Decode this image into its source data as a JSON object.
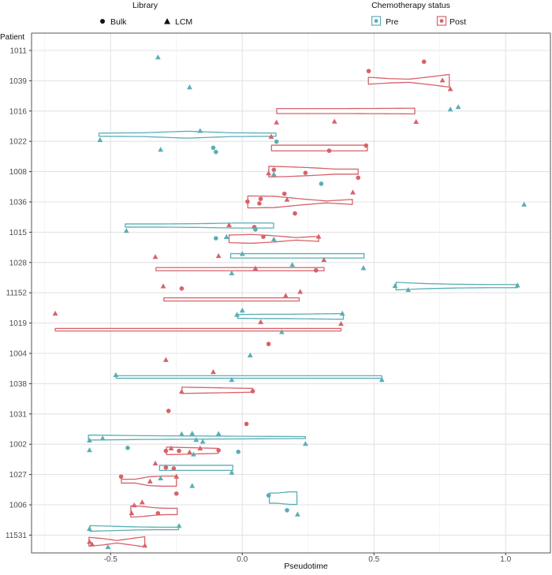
{
  "chart_data": {
    "type": "violin",
    "xlabel": "Pseudotime",
    "ylabel": "Patient",
    "xlim": [
      -0.8,
      1.17
    ],
    "x_ticks": [
      -0.5,
      0,
      0.5,
      1.0
    ],
    "x_tick_labels": [
      "-0.5",
      "0.0",
      "0.5",
      "1.0"
    ],
    "x_minor_ticks": [
      -0.75,
      -0.25,
      0.25,
      0.75
    ],
    "grid": true,
    "legend_position": "top",
    "categories": [
      "1011",
      "1039",
      "1016",
      "1022",
      "1008",
      "1036",
      "1015",
      "1028",
      "11152",
      "1019",
      "1004",
      "1038",
      "1031",
      "1002",
      "1027",
      "1006",
      "11531"
    ],
    "legends": [
      {
        "title": "Library",
        "entries": [
          {
            "label": "Bulk",
            "shape": "circle"
          },
          {
            "label": "LCM",
            "shape": "triangle"
          }
        ]
      },
      {
        "title": "Chemotherapy status",
        "entries": [
          {
            "label": "Pre",
            "color": "#5AAEB4"
          },
          {
            "label": "Post",
            "color": "#D6636A"
          }
        ]
      }
    ],
    "colors": {
      "Pre": "#5AAEB4",
      "Post": "#D6636A"
    },
    "violins": [
      {
        "patient": "1039",
        "status": "Post",
        "min": 0.479,
        "max": 0.786,
        "density": [
          0.55,
          0.35,
          0.25,
          0.6,
          1.0
        ]
      },
      {
        "patient": "1016",
        "status": "Post",
        "min": 0.131,
        "max": 0.655,
        "density": [
          0.4,
          0.4,
          0.4,
          0.42,
          0.45
        ]
      },
      {
        "patient": "1022",
        "status": "Pre",
        "min": -0.544,
        "max": 0.128,
        "density": [
          0.25,
          0.3,
          0.55,
          0.3,
          0.25
        ]
      },
      {
        "patient": "1022",
        "status": "Post",
        "min": 0.111,
        "max": 0.475,
        "density": [
          0.45,
          0.45,
          0.45,
          0.45,
          0.45
        ]
      },
      {
        "patient": "1008",
        "status": "Post",
        "min": 0.101,
        "max": 0.44,
        "density": [
          0.85,
          0.75,
          0.6,
          0.4,
          0.4
        ]
      },
      {
        "patient": "1036",
        "status": "Post",
        "min": 0.021,
        "max": 0.418,
        "density": [
          0.95,
          0.9,
          0.5,
          0.15,
          0.4
        ]
      },
      {
        "patient": "1015",
        "status": "Pre",
        "min": -0.444,
        "max": 0.119,
        "density": [
          0.25,
          0.25,
          0.3,
          0.4,
          0.4
        ]
      },
      {
        "patient": "1015",
        "status": "Post",
        "min": -0.05,
        "max": 0.29,
        "density": [
          0.6,
          0.7,
          0.5,
          0.2,
          0.4
        ]
      },
      {
        "patient": "1028",
        "status": "Pre",
        "min": -0.044,
        "max": 0.4625,
        "density": [
          0.35,
          0.35,
          0.35,
          0.35,
          0.35
        ]
      },
      {
        "patient": "1028",
        "status": "Post",
        "min": -0.3275,
        "max": 0.311,
        "density": [
          0.25,
          0.25,
          0.25,
          0.25,
          0.25
        ]
      },
      {
        "patient": "11152",
        "status": "Pre",
        "min": 0.584,
        "max": 1.045,
        "density": [
          0.6,
          0.4,
          0.3,
          0.25,
          0.25
        ]
      },
      {
        "patient": "11152",
        "status": "Post",
        "min": -0.2975,
        "max": 0.216,
        "density": [
          0.25,
          0.25,
          0.25,
          0.25,
          0.25
        ]
      },
      {
        "patient": "1019",
        "status": "Pre",
        "min": -0.0175,
        "max": 0.384,
        "density": [
          0.3,
          0.35,
          0.35,
          0.4,
          0.45
        ]
      },
      {
        "patient": "1019",
        "status": "Post",
        "min": -0.71,
        "max": 0.375,
        "density": [
          0.2,
          0.2,
          0.2,
          0.2,
          0.2
        ]
      },
      {
        "patient": "1038",
        "status": "Pre",
        "min": -0.479,
        "max": 0.53,
        "density": [
          0.2,
          0.2,
          0.2,
          0.2,
          0.2
        ]
      },
      {
        "patient": "1038",
        "status": "Post",
        "min": -0.229,
        "max": 0.04,
        "density": [
          0.5,
          0.45,
          0.4,
          0.35,
          0.3
        ]
      },
      {
        "patient": "1002",
        "status": "Pre",
        "min": -0.584,
        "max": 0.24,
        "density": [
          0.4,
          0.3,
          0.25,
          0.2,
          0.15
        ]
      },
      {
        "patient": "1002",
        "status": "Post",
        "min": -0.2875,
        "max": -0.091,
        "density": [
          0.6,
          0.55,
          0.5,
          0.45,
          0.4
        ]
      },
      {
        "patient": "1027",
        "status": "Pre",
        "min": -0.314,
        "max": -0.036,
        "density": [
          0.4,
          0.4,
          0.4,
          0.4,
          0.4
        ]
      },
      {
        "patient": "1027",
        "status": "Post",
        "min": -0.459,
        "max": -0.25,
        "density": [
          0.3,
          0.3,
          0.7,
          0.8,
          0.8
        ]
      },
      {
        "patient": "1006",
        "status": "Pre",
        "min": 0.103,
        "max": 0.2075,
        "density": [
          0.8,
          0.8,
          0.9,
          1.0,
          1.0
        ]
      },
      {
        "patient": "1006",
        "status": "Post",
        "min": -0.423,
        "max": -0.247,
        "density": [
          0.9,
          0.8,
          0.6,
          0.5,
          0.5
        ]
      },
      {
        "patient": "11531",
        "status": "Pre",
        "min": -0.578,
        "max": -0.2415,
        "density": [
          0.45,
          0.35,
          0.25,
          0.2,
          0.2
        ]
      },
      {
        "patient": "11531",
        "status": "Post",
        "min": -0.582,
        "max": -0.37,
        "density": [
          0.7,
          0.5,
          0.2,
          0.5,
          0.8
        ]
      }
    ],
    "point_fields": [
      "patient",
      "status",
      "library",
      "pseudotime",
      "jitter"
    ],
    "points": [
      [
        "1011",
        "Pre",
        "LCM",
        -0.32,
        -0.23
      ],
      [
        "1011",
        "Post",
        "Bulk",
        0.69,
        -0.37
      ],
      [
        "1039",
        "Post",
        "Bulk",
        0.48,
        0.32
      ],
      [
        "1039",
        "Post",
        "LCM",
        0.76,
        0.01
      ],
      [
        "1039",
        "Pre",
        "LCM",
        -0.2,
        -0.22
      ],
      [
        "1039",
        "Post",
        "LCM",
        0.79,
        -0.28
      ],
      [
        "1016",
        "Pre",
        "LCM",
        0.79,
        0.05
      ],
      [
        "1016",
        "Pre",
        "LCM",
        0.82,
        0.13
      ],
      [
        "1016",
        "Post",
        "LCM",
        0.13,
        -0.38
      ],
      [
        "1016",
        "Post",
        "LCM",
        0.35,
        -0.35
      ],
      [
        "1016",
        "Post",
        "LCM",
        0.66,
        -0.36
      ],
      [
        "1022",
        "Pre",
        "LCM",
        -0.16,
        0.34
      ],
      [
        "1022",
        "Pre",
        "LCM",
        -0.54,
        0.04
      ],
      [
        "1022",
        "Post",
        "LCM",
        0.11,
        0.15
      ],
      [
        "1022",
        "Pre",
        "Bulk",
        0.13,
        -0.01
      ],
      [
        "1022",
        "Pre",
        "LCM",
        -0.31,
        -0.28
      ],
      [
        "1022",
        "Pre",
        "Bulk",
        -0.11,
        -0.21
      ],
      [
        "1022",
        "Pre",
        "Bulk",
        -0.1,
        -0.35
      ],
      [
        "1022",
        "Post",
        "Bulk",
        0.47,
        -0.14
      ],
      [
        "1022",
        "Post",
        "Bulk",
        0.33,
        -0.31
      ],
      [
        "1008",
        "Post",
        "Bulk",
        0.12,
        0.06
      ],
      [
        "1008",
        "Post",
        "LCM",
        0.1,
        -0.06
      ],
      [
        "1008",
        "Pre",
        "LCM",
        0.12,
        -0.09
      ],
      [
        "1008",
        "Post",
        "Bulk",
        0.24,
        -0.04
      ],
      [
        "1008",
        "Post",
        "Bulk",
        0.44,
        -0.2
      ],
      [
        "1008",
        "Pre",
        "Bulk",
        0.3,
        -0.4
      ],
      [
        "1036",
        "Post",
        "LCM",
        0.42,
        0.31
      ],
      [
        "1036",
        "Post",
        "Bulk",
        0.16,
        0.27
      ],
      [
        "1036",
        "Post",
        "LCM",
        0.17,
        0.07
      ],
      [
        "1036",
        "Post",
        "Bulk",
        0.07,
        0.1
      ],
      [
        "1036",
        "Post",
        "Bulk",
        0.065,
        -0.05
      ],
      [
        "1036",
        "Post",
        "Bulk",
        0.02,
        0.01
      ],
      [
        "1036",
        "Pre",
        "LCM",
        1.07,
        -0.09
      ],
      [
        "1036",
        "Post",
        "Bulk",
        0.2,
        -0.38
      ],
      [
        "1015",
        "Post",
        "LCM",
        -0.05,
        0.23
      ],
      [
        "1015",
        "Post",
        "Bulk",
        0.046,
        0.17
      ],
      [
        "1015",
        "Pre",
        "Bulk",
        0.05,
        0.09
      ],
      [
        "1015",
        "Pre",
        "LCM",
        -0.44,
        0.04
      ],
      [
        "1015",
        "Pre",
        "Bulk",
        -0.1,
        -0.2
      ],
      [
        "1015",
        "Pre",
        "LCM",
        -0.06,
        -0.16
      ],
      [
        "1015",
        "Post",
        "Bulk",
        0.08,
        -0.15
      ],
      [
        "1015",
        "Pre",
        "LCM",
        0.12,
        -0.24
      ],
      [
        "1015",
        "Post",
        "LCM",
        0.29,
        -0.15
      ],
      [
        "1028",
        "Post",
        "LCM",
        -0.33,
        0.18
      ],
      [
        "1028",
        "Post",
        "LCM",
        -0.09,
        0.21
      ],
      [
        "1028",
        "Pre",
        "LCM",
        0.0,
        0.28
      ],
      [
        "1028",
        "Post",
        "LCM",
        0.31,
        0.08
      ],
      [
        "1028",
        "Pre",
        "LCM",
        0.19,
        -0.08
      ],
      [
        "1028",
        "Pre",
        "LCM",
        0.46,
        -0.19
      ],
      [
        "1028",
        "Post",
        "LCM",
        0.05,
        -0.2
      ],
      [
        "1028",
        "Post",
        "Bulk",
        0.28,
        -0.26
      ],
      [
        "1028",
        "Pre",
        "LCM",
        -0.04,
        -0.36
      ],
      [
        "11152",
        "Post",
        "LCM",
        -0.3,
        0.21
      ],
      [
        "11152",
        "Post",
        "Bulk",
        -0.23,
        0.14
      ],
      [
        "11152",
        "Pre",
        "LCM",
        0.58,
        0.22
      ],
      [
        "11152",
        "Pre",
        "LCM",
        1.045,
        0.24
      ],
      [
        "11152",
        "Pre",
        "LCM",
        0.63,
        0.09
      ],
      [
        "11152",
        "Post",
        "LCM",
        0.165,
        -0.1
      ],
      [
        "11152",
        "Post",
        "LCM",
        0.22,
        0.03
      ],
      [
        "1019",
        "Post",
        "LCM",
        -0.71,
        0.31
      ],
      [
        "1019",
        "Pre",
        "LCM",
        0.0,
        0.41
      ],
      [
        "1019",
        "Pre",
        "LCM",
        -0.02,
        0.27
      ],
      [
        "1019",
        "Pre",
        "LCM",
        0.38,
        0.31
      ],
      [
        "1019",
        "Post",
        "LCM",
        0.07,
        0.03
      ],
      [
        "1019",
        "Post",
        "LCM",
        0.375,
        -0.03
      ],
      [
        "1019",
        "Pre",
        "LCM",
        0.15,
        -0.3
      ],
      [
        "1004",
        "Post",
        "Bulk",
        0.1,
        0.31
      ],
      [
        "1004",
        "Pre",
        "LCM",
        0.03,
        -0.07
      ],
      [
        "1004",
        "Post",
        "LCM",
        -0.29,
        -0.22
      ],
      [
        "1038",
        "Post",
        "LCM",
        -0.11,
        0.38
      ],
      [
        "1038",
        "Pre",
        "LCM",
        -0.48,
        0.28
      ],
      [
        "1038",
        "Pre",
        "LCM",
        -0.04,
        0.12
      ],
      [
        "1038",
        "Pre",
        "LCM",
        0.53,
        0.12
      ],
      [
        "1038",
        "Post",
        "LCM",
        -0.23,
        -0.27
      ],
      [
        "1038",
        "Post",
        "Bulk",
        0.04,
        -0.25
      ],
      [
        "1031",
        "Post",
        "Bulk",
        -0.28,
        0.1
      ],
      [
        "1031",
        "Post",
        "Bulk",
        0.016,
        -0.33
      ],
      [
        "1002",
        "Pre",
        "LCM",
        -0.23,
        0.33
      ],
      [
        "1002",
        "Pre",
        "LCM",
        -0.19,
        0.35
      ],
      [
        "1002",
        "Pre",
        "LCM",
        -0.09,
        0.34
      ],
      [
        "1002",
        "Pre",
        "LCM",
        -0.58,
        0.12
      ],
      [
        "1002",
        "Pre",
        "LCM",
        -0.53,
        0.19
      ],
      [
        "1002",
        "Pre",
        "LCM",
        -0.175,
        0.14
      ],
      [
        "1002",
        "Pre",
        "LCM",
        -0.15,
        0.08
      ],
      [
        "1002",
        "Pre",
        "LCM",
        0.24,
        0.01
      ],
      [
        "1002",
        "Pre",
        "LCM",
        -0.58,
        -0.2
      ],
      [
        "1002",
        "Pre",
        "Bulk",
        -0.435,
        -0.12
      ],
      [
        "1002",
        "Post",
        "LCM",
        -0.27,
        -0.14
      ],
      [
        "1002",
        "Post",
        "Bulk",
        -0.29,
        -0.22
      ],
      [
        "1002",
        "Post",
        "Bulk",
        -0.24,
        -0.22
      ],
      [
        "1002",
        "Post",
        "LCM",
        -0.16,
        -0.14
      ],
      [
        "1002",
        "Post",
        "Bulk",
        -0.09,
        -0.2
      ],
      [
        "1002",
        "Post",
        "LCM",
        -0.2,
        -0.27
      ],
      [
        "1002",
        "Pre",
        "LCM",
        -0.185,
        -0.34
      ],
      [
        "1002",
        "Pre",
        "Bulk",
        -0.015,
        -0.25
      ],
      [
        "1027",
        "Post",
        "LCM",
        -0.33,
        0.36
      ],
      [
        "1027",
        "Post",
        "Bulk",
        -0.29,
        0.23
      ],
      [
        "1027",
        "Post",
        "Bulk",
        -0.26,
        0.2
      ],
      [
        "1027",
        "Pre",
        "LCM",
        -0.04,
        0.06
      ],
      [
        "1027",
        "Post",
        "Bulk",
        -0.46,
        -0.07
      ],
      [
        "1027",
        "Pre",
        "LCM",
        -0.31,
        -0.13
      ],
      [
        "1027",
        "Post",
        "LCM",
        -0.25,
        -0.07
      ],
      [
        "1027",
        "Post",
        "LCM",
        -0.35,
        -0.23
      ],
      [
        "1027",
        "Pre",
        "LCM",
        -0.19,
        -0.38
      ],
      [
        "1006",
        "Post",
        "Bulk",
        -0.25,
        0.37
      ],
      [
        "1006",
        "Pre",
        "Bulk",
        0.1,
        0.31
      ],
      [
        "1006",
        "Post",
        "LCM",
        -0.38,
        0.08
      ],
      [
        "1006",
        "Post",
        "LCM",
        -0.41,
        -0.02
      ],
      [
        "1006",
        "Post",
        "LCM",
        -0.42,
        -0.28
      ],
      [
        "1006",
        "Post",
        "Bulk",
        -0.32,
        -0.28
      ],
      [
        "1006",
        "Pre",
        "Bulk",
        0.17,
        -0.18
      ],
      [
        "1006",
        "Pre",
        "LCM",
        0.21,
        -0.32
      ],
      [
        "11531",
        "Pre",
        "LCM",
        -0.58,
        0.2
      ],
      [
        "11531",
        "Pre",
        "LCM",
        -0.24,
        0.3
      ],
      [
        "11531",
        "Post",
        "LCM",
        -0.58,
        -0.23
      ],
      [
        "11531",
        "Post",
        "LCM",
        -0.57,
        -0.31
      ],
      [
        "11531",
        "Post",
        "LCM",
        -0.37,
        -0.35
      ],
      [
        "11531",
        "Pre",
        "LCM",
        -0.51,
        -0.4
      ]
    ]
  }
}
